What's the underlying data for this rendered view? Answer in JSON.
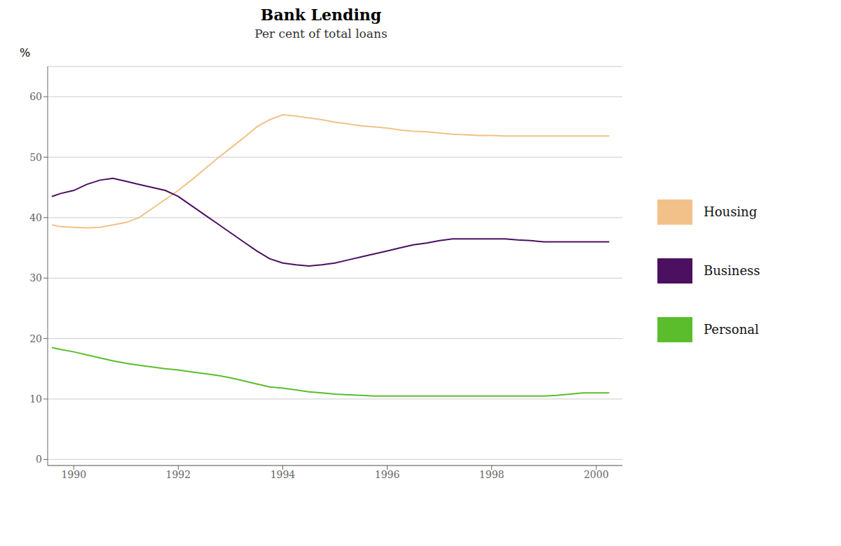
{
  "chart_data": {
    "type": "line",
    "title": "Bank Lending",
    "subtitle": "Per cent of total loans",
    "y_label": "%",
    "xlim": [
      1989.5,
      2000.5
    ],
    "ylim": [
      -1,
      65
    ],
    "yticks": [
      0,
      10,
      20,
      30,
      40,
      50,
      60
    ],
    "xticks": [
      1990,
      1992,
      1994,
      1996,
      1998,
      2000
    ],
    "grid": "y",
    "legend": "right",
    "x": [
      1989.58,
      1989.75,
      1990.0,
      1990.25,
      1990.5,
      1990.75,
      1991.0,
      1991.25,
      1991.5,
      1991.75,
      1992.0,
      1992.25,
      1992.5,
      1992.75,
      1993.0,
      1993.25,
      1993.5,
      1993.75,
      1994.0,
      1994.25,
      1994.5,
      1994.75,
      1995.0,
      1995.25,
      1995.5,
      1995.75,
      1996.0,
      1996.25,
      1996.5,
      1996.75,
      1997.0,
      1997.25,
      1997.5,
      1997.75,
      1998.0,
      1998.25,
      1998.5,
      1998.75,
      1999.0,
      1999.25,
      1999.5,
      1999.75,
      2000.0,
      2000.25
    ],
    "series": [
      {
        "name": "Housing",
        "color": "#F2C189",
        "values": [
          38.8,
          38.5,
          38.4,
          38.3,
          38.4,
          38.8,
          39.2,
          40.0,
          41.5,
          43.0,
          44.5,
          46.2,
          48.0,
          49.8,
          51.5,
          53.2,
          55.0,
          56.2,
          57.0,
          56.8,
          56.5,
          56.2,
          55.8,
          55.5,
          55.2,
          55.0,
          54.8,
          54.5,
          54.3,
          54.2,
          54.0,
          53.8,
          53.7,
          53.6,
          53.6,
          53.5,
          53.5,
          53.5,
          53.5,
          53.5,
          53.5,
          53.5,
          53.5,
          53.5
        ]
      },
      {
        "name": "Business",
        "color": "#4B1060",
        "values": [
          43.5,
          44.0,
          44.5,
          45.5,
          46.2,
          46.5,
          46.0,
          45.5,
          45.0,
          44.5,
          43.5,
          42.0,
          40.5,
          39.0,
          37.5,
          36.0,
          34.5,
          33.2,
          32.5,
          32.2,
          32.0,
          32.2,
          32.5,
          33.0,
          33.5,
          34.0,
          34.5,
          35.0,
          35.5,
          35.8,
          36.2,
          36.5,
          36.5,
          36.5,
          36.5,
          36.5,
          36.3,
          36.2,
          36.0,
          36.0,
          36.0,
          36.0,
          36.0,
          36.0
        ]
      },
      {
        "name": "Personal",
        "color": "#5BBD2C",
        "values": [
          18.5,
          18.2,
          17.8,
          17.3,
          16.8,
          16.3,
          15.9,
          15.6,
          15.3,
          15.0,
          14.8,
          14.5,
          14.2,
          13.9,
          13.5,
          13.0,
          12.5,
          12.0,
          11.8,
          11.5,
          11.2,
          11.0,
          10.8,
          10.7,
          10.6,
          10.5,
          10.5,
          10.5,
          10.5,
          10.5,
          10.5,
          10.5,
          10.5,
          10.5,
          10.5,
          10.5,
          10.5,
          10.5,
          10.5,
          10.6,
          10.8,
          11.0,
          11.0,
          11.0
        ]
      }
    ]
  }
}
